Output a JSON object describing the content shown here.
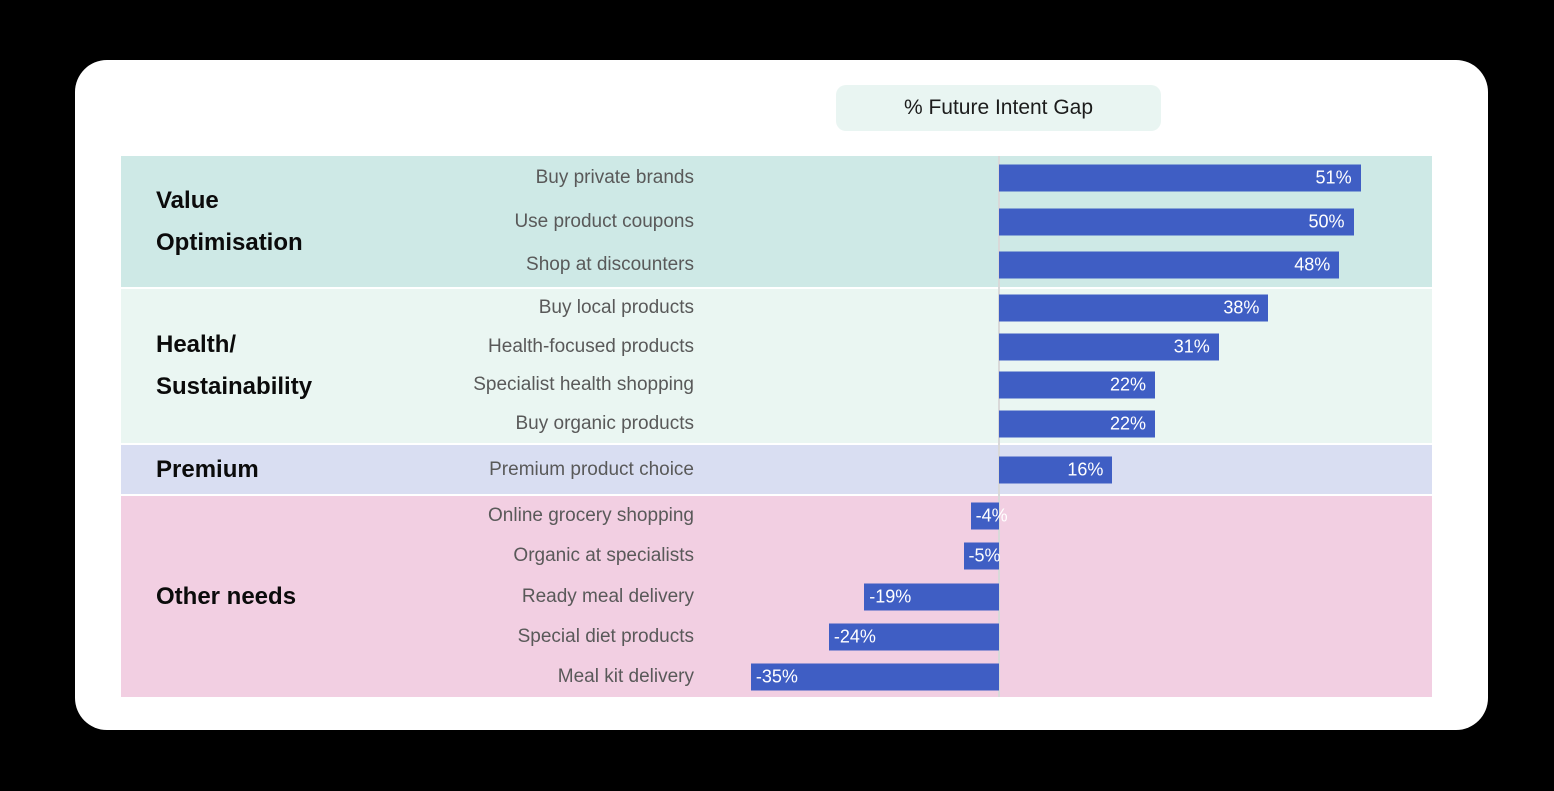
{
  "header": {
    "title": "% Future Intent Gap"
  },
  "colors": {
    "page_bg": "#000000",
    "card_bg": "#ffffff",
    "title_box_bg": "#e9f5f2",
    "bar": "#3f5ec4",
    "bar_value_text": "#ffffff",
    "item_label": "#595959",
    "category_label": "#0b0b0b",
    "zero_line": "#d9d9d9",
    "section_value_bg": "#cee9e6",
    "section_health_bg": "#eaf6f2",
    "section_premium_bg": "#d9def2",
    "section_other_bg": "#f2cfe2"
  },
  "chart_data": {
    "type": "bar",
    "orientation": "horizontal",
    "title": "% Future Intent Gap",
    "value_unit": "%",
    "value_range_shown": [
      -35,
      51
    ],
    "grid": false,
    "legend": false,
    "sections": [
      {
        "id": "value-optimisation",
        "name": "Value Optimisation",
        "name_lines": [
          "Value",
          "Optimisation"
        ],
        "bg": "#cee9e6",
        "rows": [
          {
            "label": "Buy private brands",
            "value": 51
          },
          {
            "label": "Use product coupons",
            "value": 50
          },
          {
            "label": "Shop at discounters",
            "value": 48
          }
        ]
      },
      {
        "id": "health-sustainability",
        "name": "Health/Sustainability",
        "name_lines": [
          "Health/",
          "Sustainability"
        ],
        "bg": "#eaf6f2",
        "rows": [
          {
            "label": "Buy local products",
            "value": 38
          },
          {
            "label": "Health-focused products",
            "value": 31
          },
          {
            "label": "Specialist health shopping",
            "value": 22
          },
          {
            "label": "Buy organic products",
            "value": 22
          }
        ]
      },
      {
        "id": "premium",
        "name": "Premium",
        "name_lines": [
          "Premium"
        ],
        "bg": "#d9def2",
        "rows": [
          {
            "label": "Premium product choice",
            "value": 16
          }
        ]
      },
      {
        "id": "other-needs",
        "name": "Other needs",
        "name_lines": [
          "Other needs"
        ],
        "bg": "#f2cfe2",
        "rows": [
          {
            "label": "Online grocery shopping",
            "value": -4
          },
          {
            "label": "Organic at specialists",
            "value": -5
          },
          {
            "label": "Ready meal delivery",
            "value": -19
          },
          {
            "label": "Special diet products",
            "value": -24
          },
          {
            "label": "Meal kit delivery",
            "value": -35
          }
        ]
      }
    ]
  }
}
